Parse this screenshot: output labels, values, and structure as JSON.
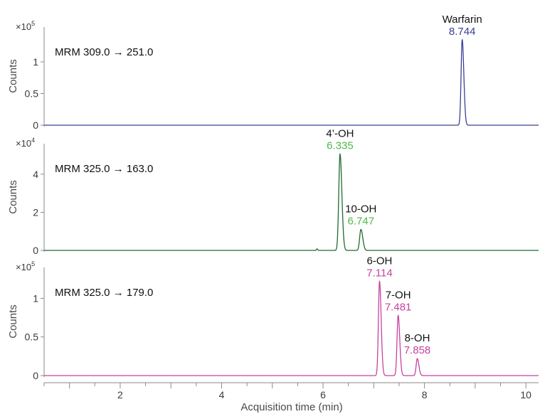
{
  "chart_data": {
    "type": "line",
    "xlabel": "Acquisition time (min)",
    "ylabel": "Counts",
    "xlim": [
      0.5,
      10.25
    ],
    "xticks": [
      2,
      4,
      6,
      8,
      10
    ],
    "x_minor_step": 0.5,
    "panels": [
      {
        "transition": "MRM 309.0 → 251.0",
        "multiplier": "×10",
        "exponent": "5",
        "ylim": [
          0,
          1.55
        ],
        "yticks": [
          0,
          0.5,
          1
        ],
        "ytick_labels": [
          "0",
          "0.5",
          "1"
        ],
        "color": "#3a3f95",
        "peaks": [
          {
            "name": "Warfarin",
            "rt": "8.744",
            "x": 8.744,
            "height": 1.35,
            "width": 0.022
          }
        ]
      },
      {
        "transition": "MRM 325.0 → 163.0",
        "multiplier": "×10",
        "exponent": "4",
        "ylim": [
          0,
          5.6
        ],
        "yticks": [
          0,
          2,
          4
        ],
        "ytick_labels": [
          "0",
          "2",
          "4"
        ],
        "color": "#1f6b2e",
        "label_color": "#4db848",
        "peaks": [
          {
            "name": "4’-OH",
            "rt": "6.335",
            "x": 6.335,
            "height": 5.05,
            "width": 0.025
          },
          {
            "name": "10-OH",
            "rt": "6.747",
            "x": 6.747,
            "height": 1.1,
            "width": 0.025
          },
          {
            "name": "",
            "rt": "",
            "x": 5.88,
            "height": 0.08,
            "width": 0.01
          }
        ]
      },
      {
        "transition": "MRM 325.0 → 179.0",
        "multiplier": "×10",
        "exponent": "5",
        "ylim": [
          0,
          1.4
        ],
        "yticks": [
          0,
          0.5,
          1
        ],
        "ytick_labels": [
          "0",
          "0.5",
          "1"
        ],
        "color": "#c6429f",
        "peaks": [
          {
            "name": "6-OH",
            "rt": "7.114",
            "x": 7.114,
            "height": 1.22,
            "width": 0.022
          },
          {
            "name": "7-OH",
            "rt": "7.481",
            "x": 7.481,
            "height": 0.78,
            "width": 0.022
          },
          {
            "name": "8-OH",
            "rt": "7.858",
            "x": 7.858,
            "height": 0.22,
            "width": 0.022
          }
        ]
      }
    ]
  }
}
